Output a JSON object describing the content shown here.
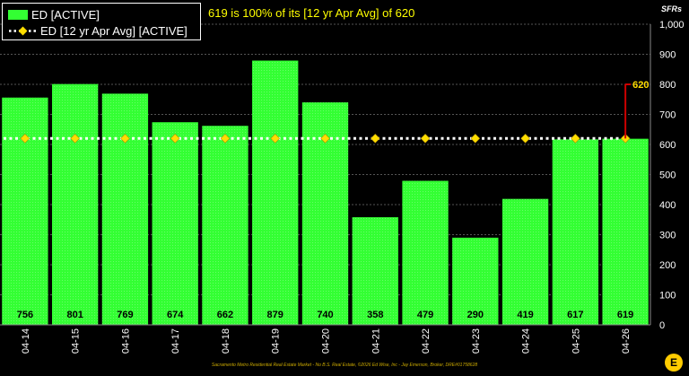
{
  "chart_data": {
    "type": "bar",
    "categories": [
      "04-14",
      "04-15",
      "04-16",
      "04-17",
      "04-18",
      "04-19",
      "04-20",
      "04-21",
      "04-22",
      "04-23",
      "04-24",
      "04-25",
      "04-26"
    ],
    "series": [
      {
        "name": "ED [ACTIVE]",
        "values": [
          756,
          801,
          769,
          674,
          662,
          879,
          740,
          358,
          479,
          290,
          419,
          617,
          619
        ],
        "color": "#33ff33"
      },
      {
        "name": "ED [12 yr Apr Avg] [ACTIVE]",
        "values": [
          620,
          620,
          620,
          620,
          620,
          620,
          620,
          620,
          620,
          620,
          620,
          620,
          620
        ],
        "color": "#ffffff",
        "marker_color": "#ffdd00"
      }
    ],
    "title": "619 is 100% of its [12 yr Apr Avg] of 620",
    "ylabel": "SFRs",
    "ylim": [
      0,
      1000
    ],
    "yticks": [
      0,
      100,
      200,
      300,
      400,
      500,
      600,
      700,
      800,
      900,
      1000
    ],
    "ytick_labels": [
      "0",
      "100",
      "200",
      "300",
      "400",
      "500",
      "600",
      "700",
      "800",
      "900",
      "1,000"
    ],
    "grid": true,
    "legend_position": "top-left",
    "annotation": {
      "label": "620",
      "value": 620,
      "category": "04-26",
      "color": "#cc0000",
      "text_color": "#ffdd00"
    },
    "footer": "Sacramento Metro Residential Real Estate Market - No B.S. Real Estate, ©2026 Ed Wise, Inc - Jay Emerson, Broker, DRE#01758628"
  },
  "logo": {
    "letter": "E",
    "icon": "lightning-logo"
  },
  "colors": {
    "background": "#000000",
    "bar": "#33ff33",
    "grid": "#555555",
    "headline": "#ffff00"
  }
}
